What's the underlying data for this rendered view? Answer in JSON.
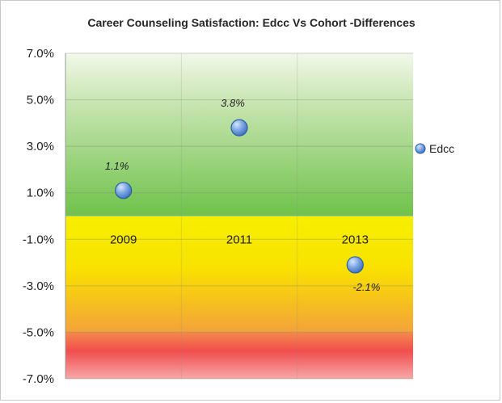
{
  "chart_data": {
    "type": "scatter",
    "title": "Career Counseling Satisfaction: Edcc Vs Cohort -Differences",
    "x": [
      "2009",
      "2011",
      "2013"
    ],
    "series": [
      {
        "name": "Edcc",
        "values": [
          1.1,
          3.8,
          -2.1
        ],
        "color": "#5b8fd6"
      }
    ],
    "data_labels": [
      "1.1%",
      "3.8%",
      "-2.1%"
    ],
    "y_ticks": [
      "7.0%",
      "5.0%",
      "3.0%",
      "1.0%",
      "-1.0%",
      "-3.0%",
      "-5.0%",
      "-7.0%"
    ],
    "ylim": [
      -7.0,
      7.0
    ],
    "grid": true,
    "legend": "right",
    "background_bands": [
      {
        "from": 0,
        "to": 7,
        "color": "#6cbf4a"
      },
      {
        "from": -5,
        "to": 0,
        "color": "#f0e400"
      },
      {
        "from": -7,
        "to": -5,
        "color": "#f04848"
      }
    ]
  }
}
